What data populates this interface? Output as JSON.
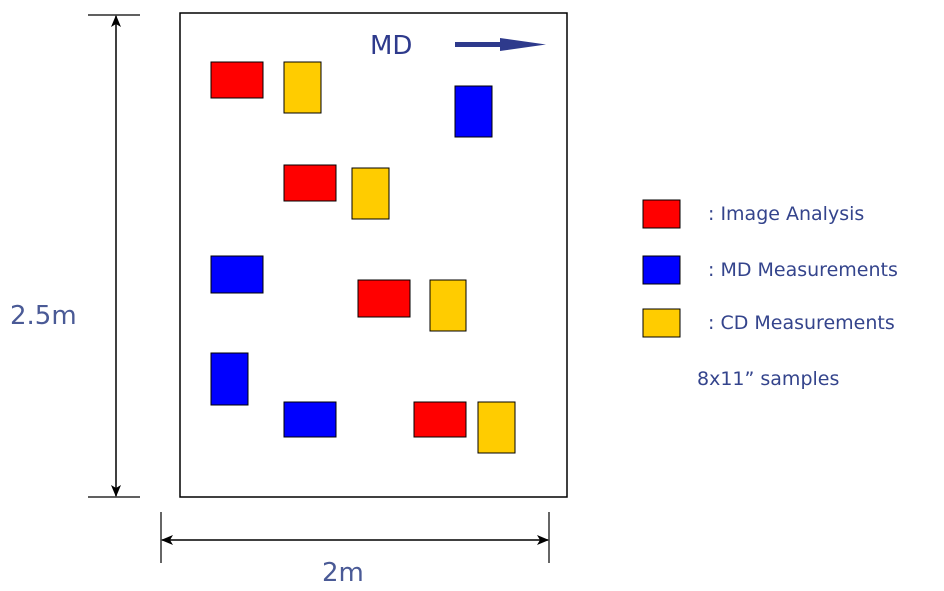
{
  "diagram": {
    "height_label": "2.5m",
    "width_label": "2m",
    "direction_label": "MD",
    "sample_size_note": "8x11” samples"
  },
  "colors": {
    "image_analysis": "#ff0000",
    "md_measurement": "#0000ff",
    "cd_measurement": "#ffcc00",
    "outline": "#000000",
    "text": "#34448c"
  },
  "legend": [
    {
      "key": "image_analysis",
      "label": ": Image Analysis"
    },
    {
      "key": "md_measurement",
      "label": ": MD Measurements"
    },
    {
      "key": "cd_measurement",
      "label": ": CD Measurements"
    }
  ]
}
